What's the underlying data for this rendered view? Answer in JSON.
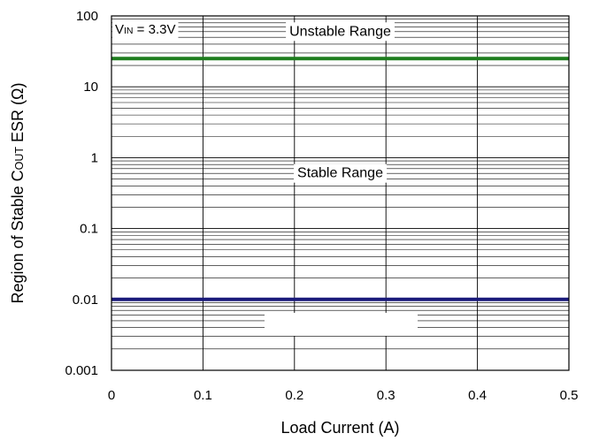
{
  "chart_data": {
    "type": "line",
    "x_scale": "linear",
    "y_scale": "log",
    "xlim": [
      0,
      0.5
    ],
    "ylim": [
      0.001,
      100
    ],
    "x_ticks": [
      "0",
      "0.1",
      "0.2",
      "0.3",
      "0.4",
      "0.5"
    ],
    "y_ticks": [
      "100",
      "10",
      "1",
      "0.1",
      "0.01",
      "0.001"
    ],
    "xlabel": "Load Current (A)",
    "ylabel": {
      "main": "Region of Stable C",
      "subscript": "OUT",
      "suffix": " ESR (Ω)"
    },
    "grid": true,
    "series": [
      {
        "x": [
          0,
          0.5
        ],
        "y": [
          25,
          25
        ],
        "color": "#1e7d1e"
      },
      {
        "x": [
          0,
          0.5
        ],
        "y": [
          0.01,
          0.01
        ],
        "color": "#1a1a7a"
      }
    ],
    "annotations": [
      {
        "text": "Unstable Range",
        "x": 0.25,
        "y": 60
      },
      {
        "text": "Stable Range",
        "x": 0.25,
        "y": 0.6
      }
    ],
    "condition_label": {
      "main": "V",
      "subscript": "IN",
      "suffix": " = 3.3V"
    }
  }
}
